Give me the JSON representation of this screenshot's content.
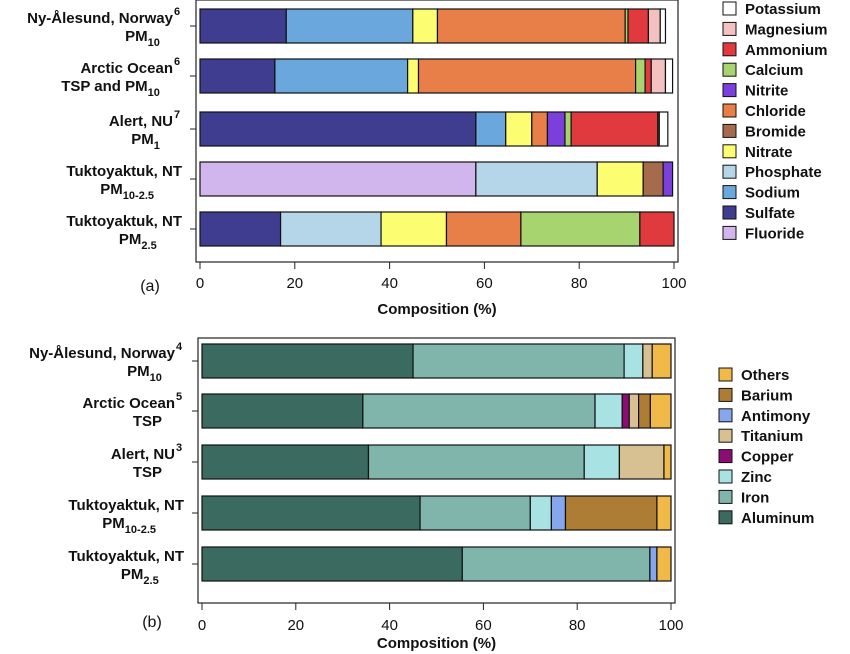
{
  "chart_data": [
    {
      "type": "bar",
      "orientation": "horizontal",
      "stacked": true,
      "panel_label": "(a)",
      "xlabel": "Composition (%)",
      "xlim": [
        0,
        100
      ],
      "xticks": [
        "0",
        "20",
        "40",
        "60",
        "80",
        "100"
      ],
      "legend_position": "right",
      "categories": [
        {
          "line1": "Ny-Ålesund, Norway",
          "sup": "6",
          "line2": "PM",
          "sub": "10"
        },
        {
          "line1": "Arctic Ocean",
          "sup": "6",
          "line2": "TSP and PM",
          "sub": "10"
        },
        {
          "line1": "Alert, NU",
          "sup": "7",
          "line2": "PM",
          "sub": "1"
        },
        {
          "line1": "Tuktoyaktuk, NT",
          "sup": "",
          "line2": "PM",
          "sub": "10-2.5"
        },
        {
          "line1": "Tuktoyaktuk, NT",
          "sup": "",
          "line2": "PM",
          "sub": "2.5"
        }
      ],
      "series": [
        {
          "name": "Sulfate",
          "color": "#3f3d8f",
          "values": [
            18.2,
            15.8,
            58.2,
            0,
            17.0
          ]
        },
        {
          "name": "Sodium",
          "color": "#6aa7dc",
          "values": [
            26.7,
            28.0,
            6.3,
            0,
            0
          ]
        },
        {
          "name": "Fluoride",
          "color": "#d1b6ee",
          "values": [
            0,
            0,
            0,
            58.2,
            0
          ]
        },
        {
          "name": "Phosphate",
          "color": "#b5d6e8",
          "values": [
            0,
            0,
            0,
            25.6,
            21.2
          ]
        },
        {
          "name": "Nitrate",
          "color": "#fdfd72",
          "values": [
            5.2,
            2.3,
            5.5,
            9.7,
            13.8
          ]
        },
        {
          "name": "Chloride",
          "color": "#e97f48",
          "values": [
            39.6,
            45.8,
            3.3,
            0,
            15.7
          ]
        },
        {
          "name": "Bromide",
          "color": "#a66b4c",
          "values": [
            0,
            0,
            0,
            4.2,
            0
          ]
        },
        {
          "name": "Nitrite",
          "color": "#7b3fdc",
          "values": [
            0,
            0,
            3.7,
            2.0,
            0
          ]
        },
        {
          "name": "Calcium",
          "color": "#a8d46f",
          "values": [
            0.6,
            2.0,
            1.3,
            0,
            25.1
          ]
        },
        {
          "name": "Ammonium",
          "color": "#e03a3f",
          "values": [
            4.3,
            1.3,
            18.3,
            0,
            7.2
          ]
        },
        {
          "name": "Magnesium",
          "color": "#f3c2c0",
          "values": [
            2.5,
            3.0,
            0.3,
            0,
            0
          ]
        },
        {
          "name": "Potassium",
          "color": "#ffffff",
          "values": [
            1.1,
            1.5,
            1.8,
            0,
            0
          ]
        }
      ],
      "legend_order": [
        "Potassium",
        "Magnesium",
        "Ammonium",
        "Calcium",
        "Nitrite",
        "Chloride",
        "Bromide",
        "Nitrate",
        "Phosphate",
        "Sodium",
        "Sulfate",
        "Fluoride"
      ]
    },
    {
      "type": "bar",
      "orientation": "horizontal",
      "stacked": true,
      "panel_label": "(b)",
      "xlabel": "Composition (%)",
      "xlim": [
        0,
        100
      ],
      "xticks": [
        "0",
        "20",
        "40",
        "60",
        "80",
        "100"
      ],
      "legend_position": "right",
      "categories": [
        {
          "line1": "Ny-Ålesund, Norway",
          "sup": "4",
          "line2": "PM",
          "sub": "10"
        },
        {
          "line1": "Arctic Ocean",
          "sup": "5",
          "line2": "TSP",
          "sub": ""
        },
        {
          "line1": "Alert, NU",
          "sup": "3",
          "line2": "TSP",
          "sub": ""
        },
        {
          "line1": "Tuktoyaktuk, NT",
          "sup": "",
          "line2": "PM",
          "sub": "10-2.5"
        },
        {
          "line1": "Tuktoyaktuk, NT",
          "sup": "",
          "line2": "PM",
          "sub": "2.5"
        }
      ],
      "series": [
        {
          "name": "Aluminum",
          "color": "#3a6a60",
          "values": [
            45.0,
            34.3,
            35.5,
            46.5,
            55.5
          ]
        },
        {
          "name": "Iron",
          "color": "#7fb5aa",
          "values": [
            45.0,
            49.5,
            46.0,
            23.5,
            40.0
          ]
        },
        {
          "name": "Zinc",
          "color": "#a9e2e2",
          "values": [
            4.0,
            5.8,
            7.5,
            4.5,
            0
          ]
        },
        {
          "name": "Antimony",
          "color": "#86a6ee",
          "values": [
            0,
            0,
            0,
            3.0,
            1.5
          ]
        },
        {
          "name": "Copper",
          "color": "#8b0c75",
          "values": [
            0,
            1.5,
            0,
            0,
            0
          ]
        },
        {
          "name": "Titanium",
          "color": "#d7c091",
          "values": [
            2.0,
            2.0,
            9.5,
            0,
            0
          ]
        },
        {
          "name": "Barium",
          "color": "#ad7d35",
          "values": [
            0,
            2.5,
            0,
            19.5,
            0
          ]
        },
        {
          "name": "Others",
          "color": "#f1b948",
          "values": [
            4.0,
            4.4,
            1.5,
            3.0,
            3.0
          ]
        }
      ],
      "legend_order": [
        "Others",
        "Barium",
        "Antimony",
        "Titanium",
        "Copper",
        "Zinc",
        "Iron",
        "Aluminum"
      ]
    }
  ]
}
